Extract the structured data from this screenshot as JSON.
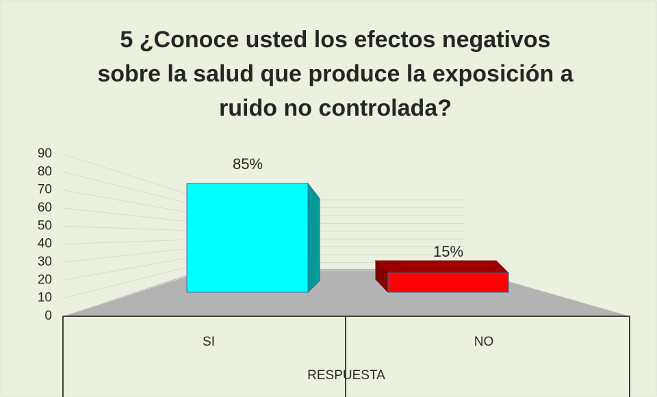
{
  "chart_data": {
    "type": "bar3d",
    "title": "5 ¿Conoce usted los efectos negativos sobre la salud que produce la exposición a ruido no controlada?",
    "title_lines": [
      "5 ¿Conoce usted los efectos negativos",
      "sobre la salud que produce la exposición a",
      "ruido no controlada?"
    ],
    "categories": [
      "SI",
      "NO"
    ],
    "values": [
      85,
      15
    ],
    "value_labels": [
      "85%",
      "15%"
    ],
    "colors": [
      "#00ffff",
      "#ff0000"
    ],
    "x_label": "RESPUESTA",
    "ylim": [
      0,
      90
    ],
    "yticks": [
      0,
      10,
      20,
      30,
      40,
      50,
      60,
      70,
      80,
      90
    ],
    "grid": true
  }
}
